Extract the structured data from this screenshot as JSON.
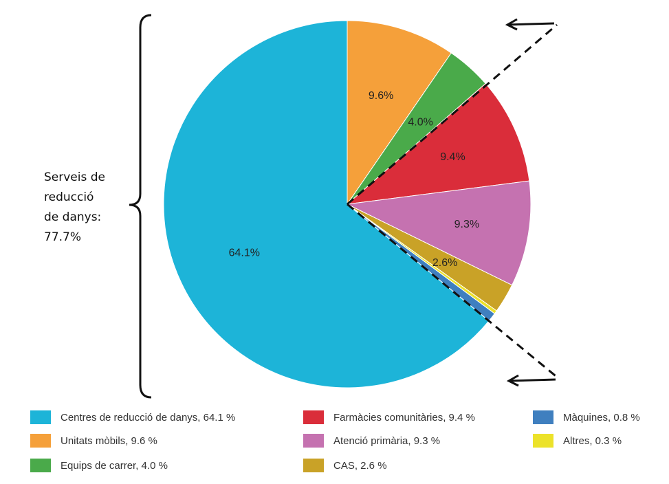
{
  "chart_data": {
    "type": "pie",
    "slices": [
      {
        "name": "Centres de reducció de danys, 64.1 %",
        "value": 64.1,
        "label": "64.1%",
        "color": "#1db4d8"
      },
      {
        "name": "Unitats mòbils, 9.6 %",
        "value": 9.6,
        "label": "9.6%",
        "color": "#f5a03a"
      },
      {
        "name": "Equips de carrer, 4.0 %",
        "value": 4.0,
        "label": "4.0%",
        "color": "#4aaa4a"
      },
      {
        "name": "Farmàcies comunitàries, 9.4 %",
        "value": 9.4,
        "label": "9.4%",
        "color": "#da2d3a"
      },
      {
        "name": "Atenció primària, 9.3 %",
        "value": 9.3,
        "label": "9.3%",
        "color": "#c572b0"
      },
      {
        "name": "CAS, 2.6 %",
        "value": 2.6,
        "label": "2.6%",
        "color": "#c9a227"
      },
      {
        "name": "Màquines, 0.8 %",
        "value": 0.8,
        "label": "",
        "color": "#3f7fbf"
      },
      {
        "name": "Altres, 0.3 %",
        "value": 0.3,
        "label": "",
        "color": "#ece22a"
      }
    ],
    "annotation": {
      "lines": [
        "Serveis de",
        "reducció",
        "de danys:",
        "77.7%"
      ]
    }
  }
}
